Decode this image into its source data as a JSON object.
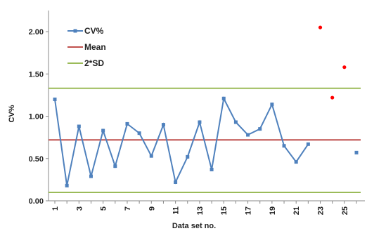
{
  "chart_data": {
    "type": "line",
    "title": "",
    "xlabel": "Data set no.",
    "ylabel": "CV%",
    "ylim": [
      0,
      2.25
    ],
    "xlim": [
      1,
      26
    ],
    "yticks": [
      "0.00",
      "0.50",
      "1.00",
      "1.50",
      "2.00"
    ],
    "ytick_values": [
      0,
      0.5,
      1.0,
      1.5,
      2.0
    ],
    "xticks": [
      "1",
      "3",
      "5",
      "7",
      "9",
      "11",
      "13",
      "15",
      "17",
      "19",
      "21",
      "23",
      "25"
    ],
    "xtick_values": [
      1,
      3,
      5,
      7,
      9,
      11,
      13,
      15,
      17,
      19,
      21,
      23,
      25
    ],
    "legend_position": "top-left",
    "grid": false,
    "series": [
      {
        "name": "CV%",
        "kind": "line-marker",
        "color": "#4f81bd",
        "x": [
          1,
          2,
          3,
          4,
          5,
          6,
          7,
          8,
          9,
          10,
          11,
          12,
          13,
          14,
          15,
          16,
          17,
          18,
          19,
          20,
          21,
          22
        ],
        "y": [
          1.2,
          0.18,
          0.88,
          0.29,
          0.83,
          0.41,
          0.91,
          0.8,
          0.53,
          0.9,
          0.22,
          0.52,
          0.93,
          0.37,
          1.21,
          0.93,
          0.78,
          0.85,
          1.14,
          0.65,
          0.46,
          0.67
        ]
      },
      {
        "name": "",
        "kind": "marker",
        "color": "#4f81bd",
        "x": [
          26
        ],
        "y": [
          0.57
        ]
      },
      {
        "name": "Mean",
        "kind": "hline",
        "color": "#c0504d",
        "y": 0.72
      },
      {
        "name": "2*SD",
        "kind": "hline",
        "color": "#9bbb59",
        "y": 1.33
      },
      {
        "name": "",
        "kind": "hline",
        "color": "#9bbb59",
        "y": 0.1
      },
      {
        "name": "",
        "kind": "points",
        "color": "#ff0000",
        "x": [
          23,
          24,
          25
        ],
        "y": [
          2.05,
          1.22,
          1.58
        ]
      }
    ]
  }
}
